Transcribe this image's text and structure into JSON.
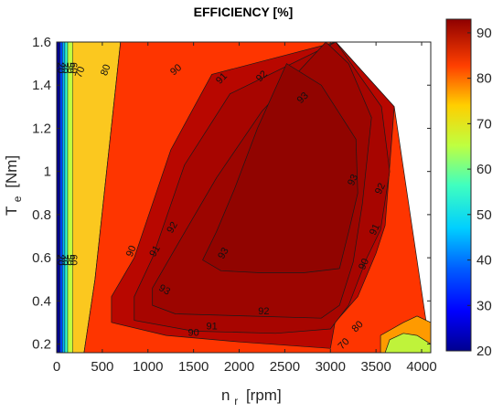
{
  "chart_data": {
    "type": "contour",
    "title": "EFFICIENCY [%]",
    "xlabel": {
      "main": "n",
      "sub": "r",
      "unit": "[rpm]"
    },
    "ylabel": {
      "main": "T",
      "sub": "e",
      "unit": "[Nm]"
    },
    "xlim": [
      0,
      4100
    ],
    "ylim": [
      0.16,
      1.6
    ],
    "xticks": [
      0,
      500,
      1000,
      1500,
      2000,
      2500,
      3000,
      3500,
      4000
    ],
    "yticks": [
      0.2,
      0.4,
      0.6,
      0.8,
      1,
      1.2,
      1.4,
      1.6
    ],
    "grid": false,
    "colorbar": {
      "range": [
        20,
        93
      ],
      "ticks": [
        20,
        30,
        40,
        50,
        60,
        70,
        80,
        90
      ],
      "colormap": "jet"
    },
    "levels": [
      20,
      30,
      40,
      50,
      60,
      70,
      80,
      90,
      91,
      92,
      93
    ],
    "regions": [
      {
        "level": 70,
        "color": "#fbc81f",
        "outline": [
          [
            0,
            1.6
          ],
          [
            700,
            1.6
          ],
          [
            420,
            0.5
          ],
          [
            300,
            0.16
          ],
          [
            0,
            0.16
          ]
        ]
      },
      {
        "level": 80,
        "color": "#fe3500",
        "outline": [
          [
            300,
            0.16
          ],
          [
            420,
            0.5
          ],
          [
            700,
            1.6
          ],
          [
            3060,
            1.6
          ],
          [
            3700,
            1.3
          ],
          [
            4100,
            0.16
          ]
        ]
      },
      {
        "level": 90,
        "color": "#b80700",
        "outline": [
          [
            3060,
            1.6
          ],
          [
            1700,
            1.45
          ],
          [
            1250,
            1.1
          ],
          [
            850,
            0.6
          ],
          [
            600,
            0.42
          ],
          [
            600,
            0.3
          ],
          [
            1200,
            0.24
          ],
          [
            2000,
            0.21
          ],
          [
            3000,
            0.18
          ],
          [
            3050,
            0.3
          ],
          [
            3300,
            0.42
          ],
          [
            3500,
            0.62
          ],
          [
            3600,
            0.75
          ],
          [
            3700,
            1.3
          ]
        ]
      },
      {
        "level": 91,
        "color": "#a70500",
        "outline": [
          [
            3060,
            1.6
          ],
          [
            1900,
            1.36
          ],
          [
            1400,
            1.03
          ],
          [
            1050,
            0.6
          ],
          [
            850,
            0.42
          ],
          [
            850,
            0.31
          ],
          [
            1500,
            0.26
          ],
          [
            2400,
            0.25
          ],
          [
            3000,
            0.27
          ],
          [
            3200,
            0.38
          ],
          [
            3400,
            0.6
          ],
          [
            3550,
            0.73
          ],
          [
            3650,
            1.0
          ],
          [
            3560,
            1.3
          ]
        ]
      },
      {
        "level": 92,
        "color": "#9c0500",
        "outline": [
          [
            2950,
            1.6
          ],
          [
            2250,
            1.28
          ],
          [
            1750,
            0.97
          ],
          [
            1350,
            0.68
          ],
          [
            1050,
            0.46
          ],
          [
            1050,
            0.38
          ],
          [
            1300,
            0.34
          ],
          [
            2100,
            0.33
          ],
          [
            2900,
            0.32
          ],
          [
            3100,
            0.38
          ],
          [
            3250,
            0.58
          ],
          [
            3350,
            0.85
          ],
          [
            3450,
            1.25
          ],
          [
            3200,
            1.5
          ]
        ]
      },
      {
        "level": 93,
        "color": "#910400",
        "outline": [
          [
            2520,
            1.5
          ],
          [
            2200,
            1.2
          ],
          [
            1950,
            0.92
          ],
          [
            1750,
            0.72
          ],
          [
            1600,
            0.59
          ],
          [
            1800,
            0.54
          ],
          [
            2250,
            0.53
          ],
          [
            2700,
            0.53
          ],
          [
            3100,
            0.55
          ],
          [
            3200,
            0.72
          ],
          [
            3300,
            0.9
          ],
          [
            3280,
            1.15
          ],
          [
            2900,
            1.4
          ]
        ]
      },
      {
        "level": 80,
        "color": "#fe9a00",
        "outline": [
          [
            3550,
            0.16
          ],
          [
            3550,
            0.24
          ],
          [
            3800,
            0.3
          ],
          [
            3950,
            0.33
          ],
          [
            4100,
            0.3
          ],
          [
            4100,
            0.16
          ]
        ]
      },
      {
        "level": 70,
        "color": "#bff33a",
        "outline": [
          [
            3600,
            0.16
          ],
          [
            3650,
            0.22
          ],
          [
            3800,
            0.25
          ],
          [
            3950,
            0.24
          ],
          [
            4100,
            0.2
          ],
          [
            4100,
            0.16
          ]
        ]
      }
    ],
    "low_speed_bands": [
      {
        "level": 20,
        "color": "#00008f",
        "x_from": 0,
        "x_to": 35
      },
      {
        "level": 30,
        "color": "#0042ff",
        "x_from": 35,
        "x_to": 62
      },
      {
        "level": 40,
        "color": "#00b0ff",
        "x_from": 62,
        "x_to": 90
      },
      {
        "level": 50,
        "color": "#34ffcb",
        "x_from": 90,
        "x_to": 120
      },
      {
        "level": 60,
        "color": "#bfff40",
        "x_from": 120,
        "x_to": 175
      }
    ],
    "contour_labels": [
      {
        "text": "20",
        "x": 40,
        "y": 1.48,
        "rotate": 90
      },
      {
        "text": "30",
        "x": 85,
        "y": 1.48,
        "rotate": 90
      },
      {
        "text": "50",
        "x": 140,
        "y": 1.48,
        "rotate": 90
      },
      {
        "text": "60",
        "x": 180,
        "y": 1.48,
        "rotate": 90
      },
      {
        "text": "70",
        "x": 260,
        "y": 1.46,
        "rotate": -70
      },
      {
        "text": "80",
        "x": 540,
        "y": 1.47,
        "rotate": -70
      },
      {
        "text": "90",
        "x": 1310,
        "y": 1.47,
        "rotate": -40
      },
      {
        "text": "91",
        "x": 1810,
        "y": 1.43,
        "rotate": -45
      },
      {
        "text": "92",
        "x": 2250,
        "y": 1.44,
        "rotate": -45
      },
      {
        "text": "93",
        "x": 2700,
        "y": 1.34,
        "rotate": -45
      },
      {
        "text": "20",
        "x": 40,
        "y": 0.59,
        "rotate": 90
      },
      {
        "text": "30",
        "x": 85,
        "y": 0.59,
        "rotate": 90
      },
      {
        "text": "50",
        "x": 140,
        "y": 0.59,
        "rotate": 90
      },
      {
        "text": "60",
        "x": 180,
        "y": 0.59,
        "rotate": 90
      },
      {
        "text": "90",
        "x": 820,
        "y": 0.63,
        "rotate": -68
      },
      {
        "text": "91",
        "x": 1080,
        "y": 0.63,
        "rotate": -60
      },
      {
        "text": "92",
        "x": 1270,
        "y": 0.74,
        "rotate": -60
      },
      {
        "text": "93",
        "x": 1830,
        "y": 0.62,
        "rotate": -60
      },
      {
        "text": "93",
        "x": 1180,
        "y": 0.45,
        "rotate": 30
      },
      {
        "text": "93",
        "x": 3250,
        "y": 0.96,
        "rotate": -65
      },
      {
        "text": "92",
        "x": 3550,
        "y": 0.92,
        "rotate": -65
      },
      {
        "text": "91",
        "x": 3490,
        "y": 0.73,
        "rotate": -65
      },
      {
        "text": "90",
        "x": 3370,
        "y": 0.57,
        "rotate": -65
      },
      {
        "text": "92",
        "x": 2270,
        "y": 0.35,
        "rotate": 0
      },
      {
        "text": "91",
        "x": 1700,
        "y": 0.28,
        "rotate": 0
      },
      {
        "text": "90",
        "x": 1500,
        "y": 0.25,
        "rotate": 0
      },
      {
        "text": "80",
        "x": 3300,
        "y": 0.28,
        "rotate": -45
      },
      {
        "text": "70",
        "x": 3150,
        "y": 0.2,
        "rotate": -45
      }
    ]
  }
}
